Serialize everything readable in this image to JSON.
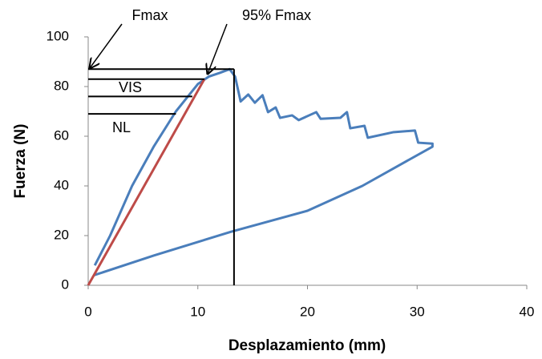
{
  "chart_data": {
    "type": "line",
    "x_label": "Desplazamiento (mm)",
    "y_label": "Fuerza (N)",
    "xlim": [
      0,
      40
    ],
    "xticks": [
      0,
      10,
      20,
      30,
      40
    ],
    "ylim": [
      0,
      100
    ],
    "yticks": [
      0,
      20,
      40,
      60,
      80,
      100
    ],
    "grid": false,
    "annotations": [
      "Fmax",
      "95% Fmax",
      "VIS",
      "NL"
    ],
    "series": [
      {
        "color": "#4a7ebb",
        "x": [
          0.6,
          2,
          4,
          6,
          8,
          10,
          11,
          12,
          12.9,
          13.4,
          13.9,
          14.6,
          15.2,
          15.9,
          16.4,
          17.1,
          17.5,
          18.6,
          19.2,
          20.8,
          21.2,
          23,
          23.6,
          23.9,
          25.2,
          25.5,
          27.8,
          29.8,
          30.1,
          31.4,
          31.4,
          25,
          20,
          13,
          6,
          0.5
        ],
        "values": [
          8,
          20,
          40,
          56,
          70,
          81,
          84,
          85.5,
          87,
          84,
          74,
          76.8,
          73.5,
          76.5,
          69.7,
          71.6,
          67.4,
          68.4,
          66.5,
          69.7,
          67,
          67.4,
          69.7,
          63.2,
          64.2,
          59.4,
          61.6,
          62.3,
          57.4,
          57,
          55.8,
          40,
          30,
          21.5,
          12,
          4
        ]
      },
      {
        "color": "#be4b48",
        "x": [
          0,
          10.6
        ],
        "values": [
          0,
          83
        ]
      },
      {
        "color": "#000000",
        "x": [
          13.3,
          13.3
        ],
        "values": [
          0,
          87
        ]
      },
      {
        "color": "#000000",
        "x": [
          0,
          13.3
        ],
        "values": [
          87,
          87
        ]
      },
      {
        "color": "#000000",
        "x": [
          0,
          10.6
        ],
        "values": [
          83,
          83
        ]
      },
      {
        "color": "#000000",
        "x": [
          0,
          9.5
        ],
        "values": [
          76,
          76
        ]
      },
      {
        "color": "#000000",
        "x": [
          0,
          8
        ],
        "values": [
          69,
          69
        ]
      }
    ]
  }
}
